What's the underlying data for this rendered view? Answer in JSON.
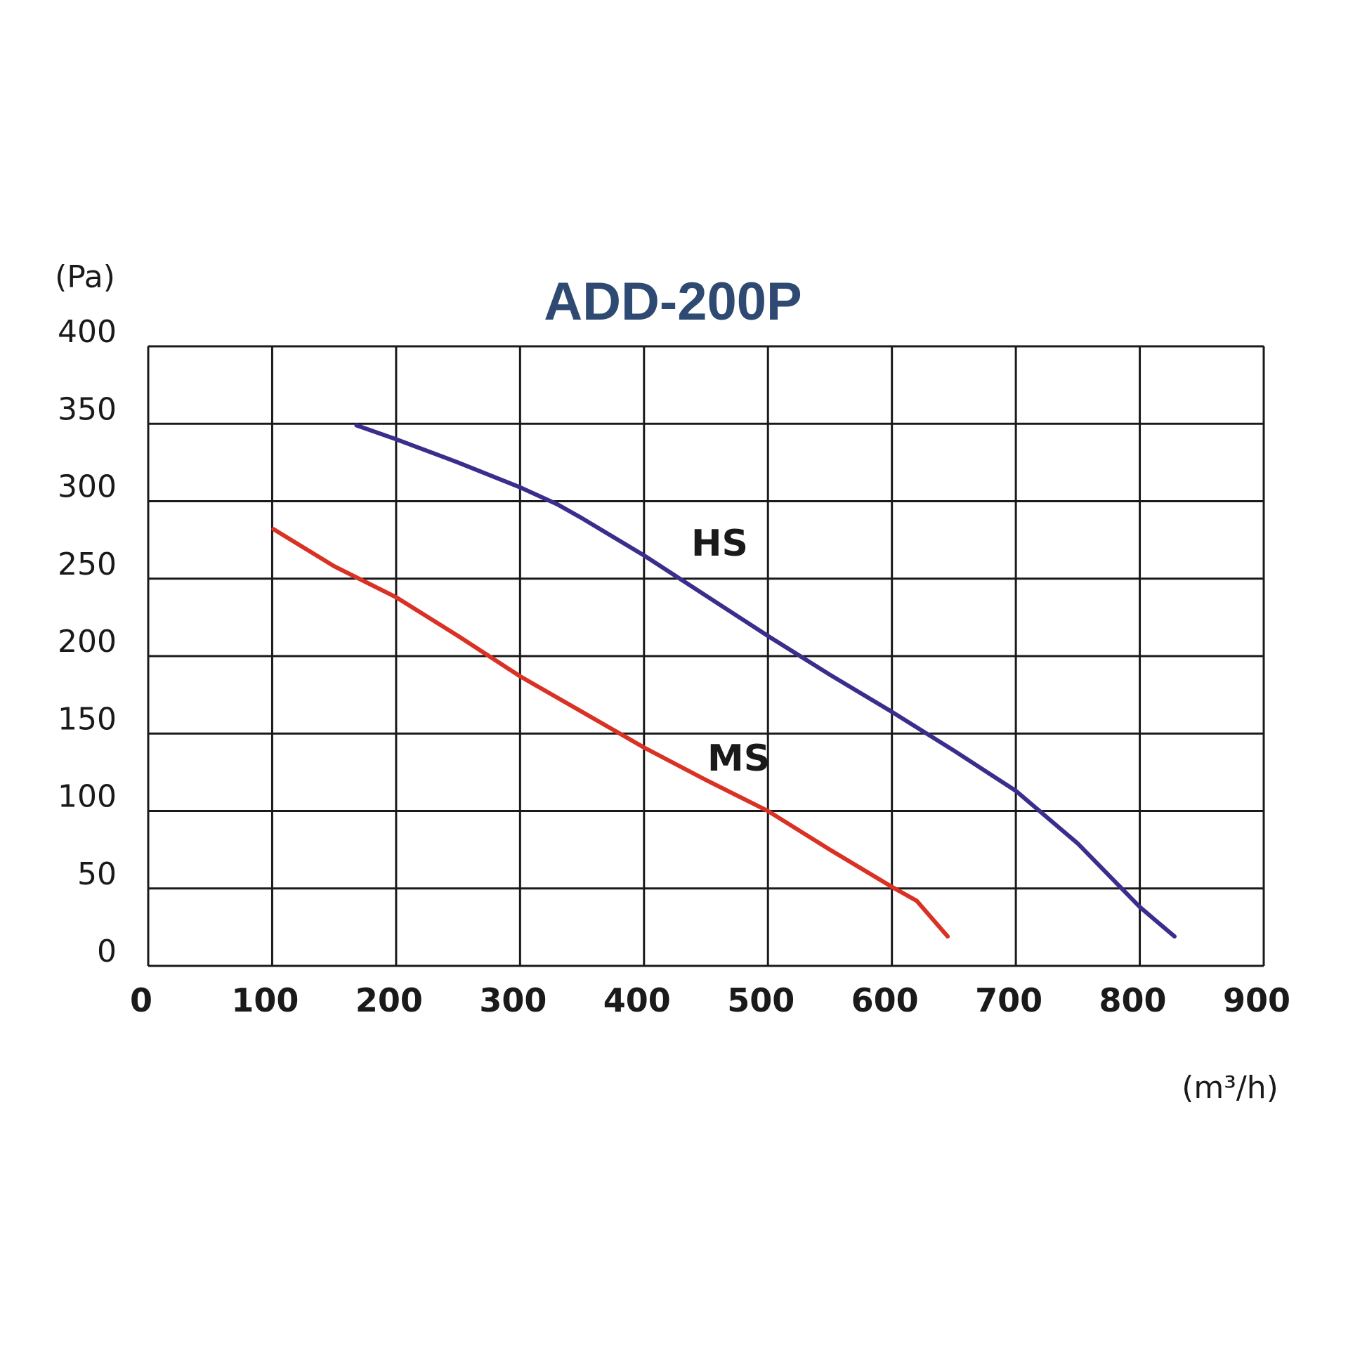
{
  "chart_data": {
    "type": "line",
    "title": "ADD-200P",
    "ylabel": "(Pa)",
    "xlabel": "(m³/h)",
    "xlim": [
      0,
      900
    ],
    "ylim": [
      0,
      400
    ],
    "x_ticks": [
      0,
      100,
      200,
      300,
      400,
      500,
      600,
      700,
      800,
      900
    ],
    "y_ticks": [
      0,
      50,
      100,
      150,
      200,
      250,
      300,
      350,
      400
    ],
    "grid": true,
    "series": [
      {
        "name": "HS",
        "color": "#3a2e8c",
        "x": [
          168,
          200,
          250,
          300,
          330,
          350,
          400,
          450,
          500,
          550,
          600,
          650,
          700,
          750,
          800,
          828
        ],
        "y": [
          349,
          340,
          325,
          309,
          298,
          289,
          265,
          239,
          213,
          188,
          164,
          139,
          113,
          79,
          38,
          19
        ]
      },
      {
        "name": "MS",
        "color": "#d93224",
        "x": [
          101,
          150,
          200,
          250,
          300,
          350,
          400,
          450,
          500,
          550,
          600,
          620,
          645
        ],
        "y": [
          282,
          258,
          238,
          213,
          187,
          164,
          141,
          120,
          100,
          75,
          51,
          42,
          19
        ]
      }
    ],
    "style": {
      "title_color": "#2e4a73",
      "grid_color": "#1a1a1a"
    }
  }
}
